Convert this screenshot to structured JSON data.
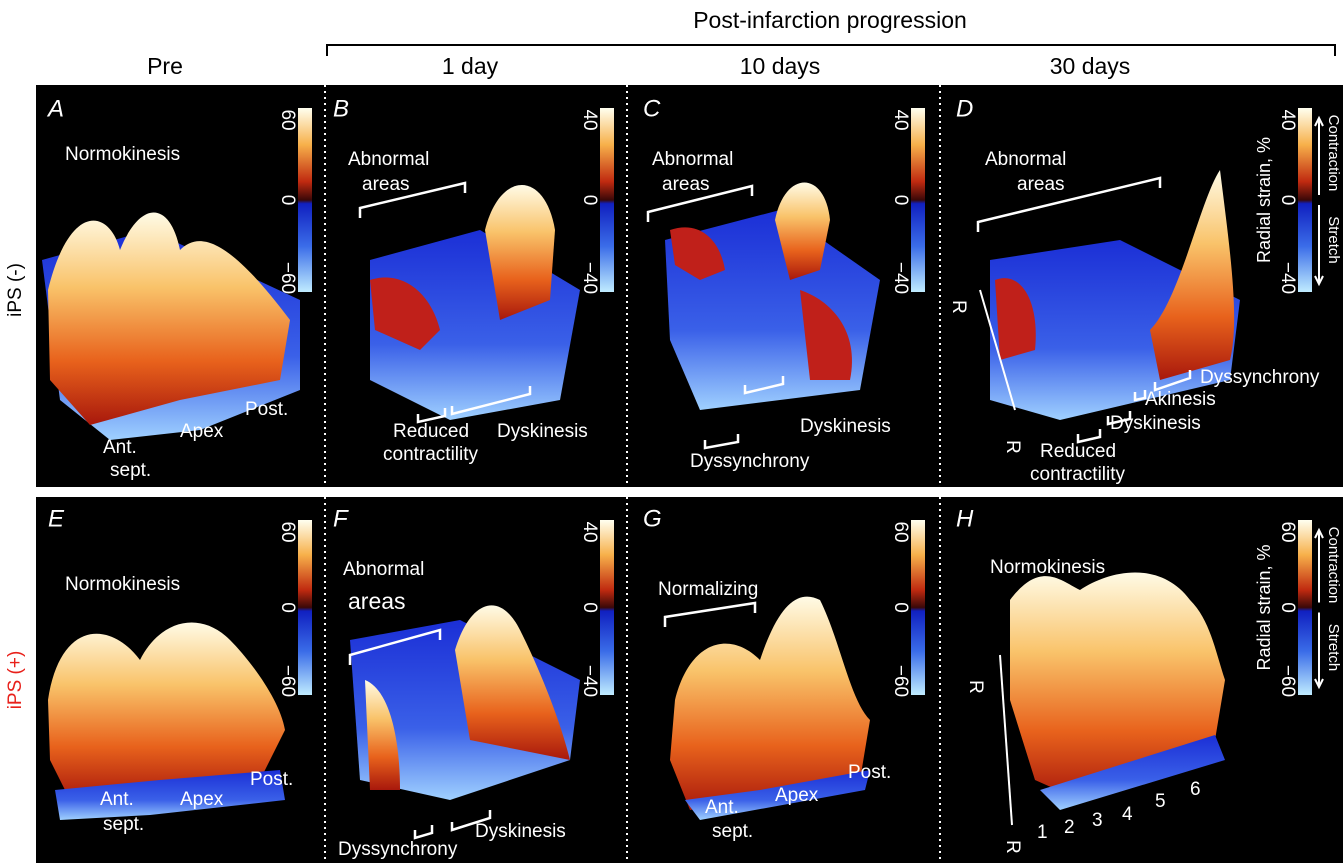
{
  "header": {
    "title": "Post-infarction progression",
    "columns": [
      "Pre",
      "1 day",
      "10 days",
      "30 days"
    ]
  },
  "rows": [
    {
      "label": "iPS (-)",
      "panels": [
        {
          "letter": "A",
          "labels": [
            "Normokinesis",
            "Ant.",
            "sept.",
            "Apex",
            "Post."
          ],
          "colorbar": [
            "60",
            "0",
            "−60"
          ]
        },
        {
          "letter": "B",
          "labels": [
            "Abnormal",
            "areas",
            "Reduced",
            "contractility",
            "Dyskinesis"
          ],
          "colorbar": [
            "40",
            "0",
            "−40"
          ]
        },
        {
          "letter": "C",
          "labels": [
            "Abnormal",
            "areas",
            "Dyssynchrony",
            "Dyskinesis"
          ],
          "colorbar": [
            "40",
            "0",
            "−40"
          ]
        },
        {
          "letter": "D",
          "labels": [
            "Abnormal",
            "areas",
            "R",
            "R",
            "Dyssynchrony",
            "Akinesis",
            "Dyskinesis",
            "Reduced",
            "contractility"
          ],
          "colorbar": [
            "40",
            "0",
            "−40"
          ],
          "legend": {
            "title": "Radial strain, %",
            "contraction": "Contraction",
            "stretch": "Stretch"
          }
        }
      ]
    },
    {
      "label": "iPS (+)",
      "panels": [
        {
          "letter": "E",
          "labels": [
            "Normokinesis",
            "Ant.",
            "sept.",
            "Apex",
            "Post."
          ],
          "colorbar": [
            "60",
            "0",
            "−60"
          ]
        },
        {
          "letter": "F",
          "labels": [
            "Abnormal",
            "areas",
            "Dyssynchrony",
            "Dyskinesis"
          ],
          "colorbar": [
            "40",
            "0",
            "−40"
          ]
        },
        {
          "letter": "G",
          "labels": [
            "Normalizing",
            "Ant.",
            "sept.",
            "Apex",
            "Post."
          ],
          "colorbar": [
            "60",
            "0",
            "−60"
          ]
        },
        {
          "letter": "H",
          "labels": [
            "Normokinesis",
            "R",
            "R",
            "1",
            "2",
            "3",
            "4",
            "5",
            "6"
          ],
          "colorbar": [
            "60",
            "0",
            "−60"
          ],
          "legend": {
            "title": "Radial strain, %",
            "contraction": "Contraction",
            "stretch": "Stretch"
          }
        }
      ]
    }
  ]
}
